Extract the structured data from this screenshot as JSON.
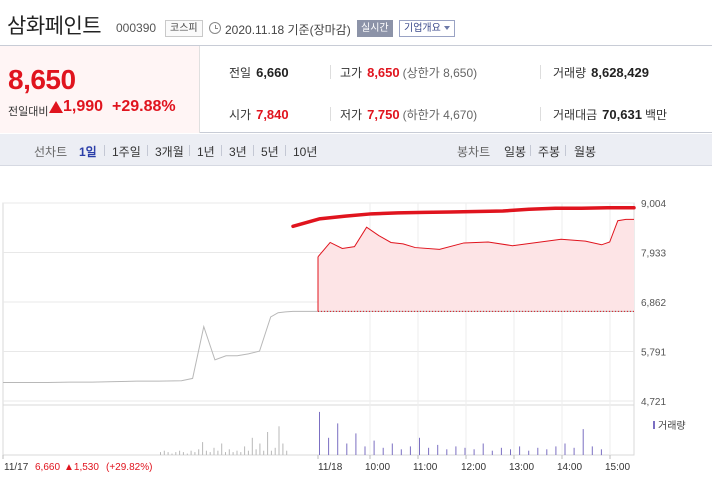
{
  "header": {
    "name": "삼화페인트",
    "code": "000390",
    "market": "코스피",
    "date": "2020.11.18 기준(장마감)",
    "realtime": "실시간",
    "company_info": "기업개요"
  },
  "quote": {
    "price": "8,650",
    "change_label": "전일대비",
    "change": "1,990",
    "change_rate": "+29.88%",
    "prev_close_label": "전일",
    "prev_close": "6,660",
    "high_label": "고가",
    "high": "8,650",
    "upper_limit": "(상한가 8,650)",
    "volume_label": "거래량",
    "volume": "8,628,429",
    "open_label": "시가",
    "open": "7,840",
    "low_label": "저가",
    "low": "7,750",
    "lower_limit": "(하한가 4,670)",
    "amount_label": "거래대금",
    "amount": "70,631",
    "amount_unit": "백만"
  },
  "nav": {
    "line_label": "선차트",
    "periods": [
      "1일",
      "1주일",
      "3개월",
      "1년",
      "3년",
      "5년",
      "10년"
    ],
    "active_period": "1일",
    "candle_label": "봉차트",
    "candles": [
      "일봉",
      "주봉",
      "월봉"
    ]
  },
  "colors": {
    "up": "#e0141e",
    "volume": "#7b6fc2",
    "prev_day": "#b8b8b8",
    "area": "#fde4e6"
  },
  "chart_data": {
    "type": "line",
    "y_ticks": [
      "9,004",
      "7,933",
      "6,862",
      "5,791",
      "4,721"
    ],
    "y_tick_values": [
      9004,
      7933,
      6862,
      5791,
      4721
    ],
    "x_ticks": [
      "11/17",
      "11/18",
      "10:00",
      "11:00",
      "12:00",
      "13:00",
      "14:00",
      "15:00"
    ],
    "prev_day_summary": {
      "close": "6,660",
      "change": "▲1,530",
      "rate": "(+29.82%)"
    },
    "volume_label": "거래량",
    "reference_level": 6660,
    "series": [
      {
        "session": "11/17",
        "x": [
          "09:00",
          "09:30",
          "10:00",
          "10:30",
          "11:00",
          "11:30",
          "12:00",
          "12:30",
          "13:00",
          "13:15",
          "13:30",
          "13:45",
          "14:00",
          "14:15",
          "14:30",
          "14:45",
          "15:00",
          "15:10",
          "15:20",
          "15:30"
        ],
        "values": [
          5120,
          5120,
          5120,
          5130,
          5130,
          5140,
          5150,
          5150,
          5160,
          5210,
          6330,
          5610,
          5700,
          5700,
          5740,
          5800,
          6540,
          6630,
          6650,
          6660
        ]
      },
      {
        "session": "11/18",
        "x": [
          "09:00",
          "09:15",
          "09:30",
          "09:45",
          "10:00",
          "10:15",
          "10:30",
          "10:45",
          "11:00",
          "11:30",
          "12:00",
          "12:30",
          "13:00",
          "13:30",
          "14:00",
          "14:30",
          "14:50",
          "15:00",
          "15:10",
          "15:20",
          "15:30"
        ],
        "values": [
          7840,
          8150,
          8020,
          8060,
          8480,
          8300,
          8150,
          8120,
          8040,
          8000,
          8140,
          8160,
          8080,
          8150,
          8220,
          8180,
          8100,
          8160,
          8620,
          8650,
          8650
        ]
      },
      {
        "session": "11/18 avg",
        "x": [
          "09:00",
          "09:30",
          "10:00",
          "10:30",
          "11:00",
          "11:30",
          "12:00",
          "12:30",
          "13:00",
          "13:30",
          "14:00",
          "14:30",
          "15:00",
          "15:30"
        ],
        "values": [
          8500,
          8660,
          8720,
          8770,
          8790,
          8800,
          8810,
          8820,
          8830,
          8870,
          8890,
          8890,
          8900,
          8900
        ]
      }
    ],
    "volume": {
      "11/17": [
        2,
        3,
        2,
        1,
        2,
        3,
        2,
        1,
        3,
        2,
        4,
        9,
        3,
        2,
        5,
        3,
        8,
        2,
        4,
        2,
        3,
        2,
        6,
        3,
        12,
        4,
        8,
        3,
        16,
        3,
        5,
        20,
        8,
        3
      ],
      "11/18": [
        30,
        12,
        22,
        8,
        15,
        6,
        10,
        5,
        8,
        4,
        6,
        12,
        5,
        7,
        4,
        6,
        5,
        4,
        8,
        3,
        5,
        4,
        6,
        3,
        5,
        4,
        6,
        8,
        5,
        18,
        6,
        4
      ]
    }
  }
}
